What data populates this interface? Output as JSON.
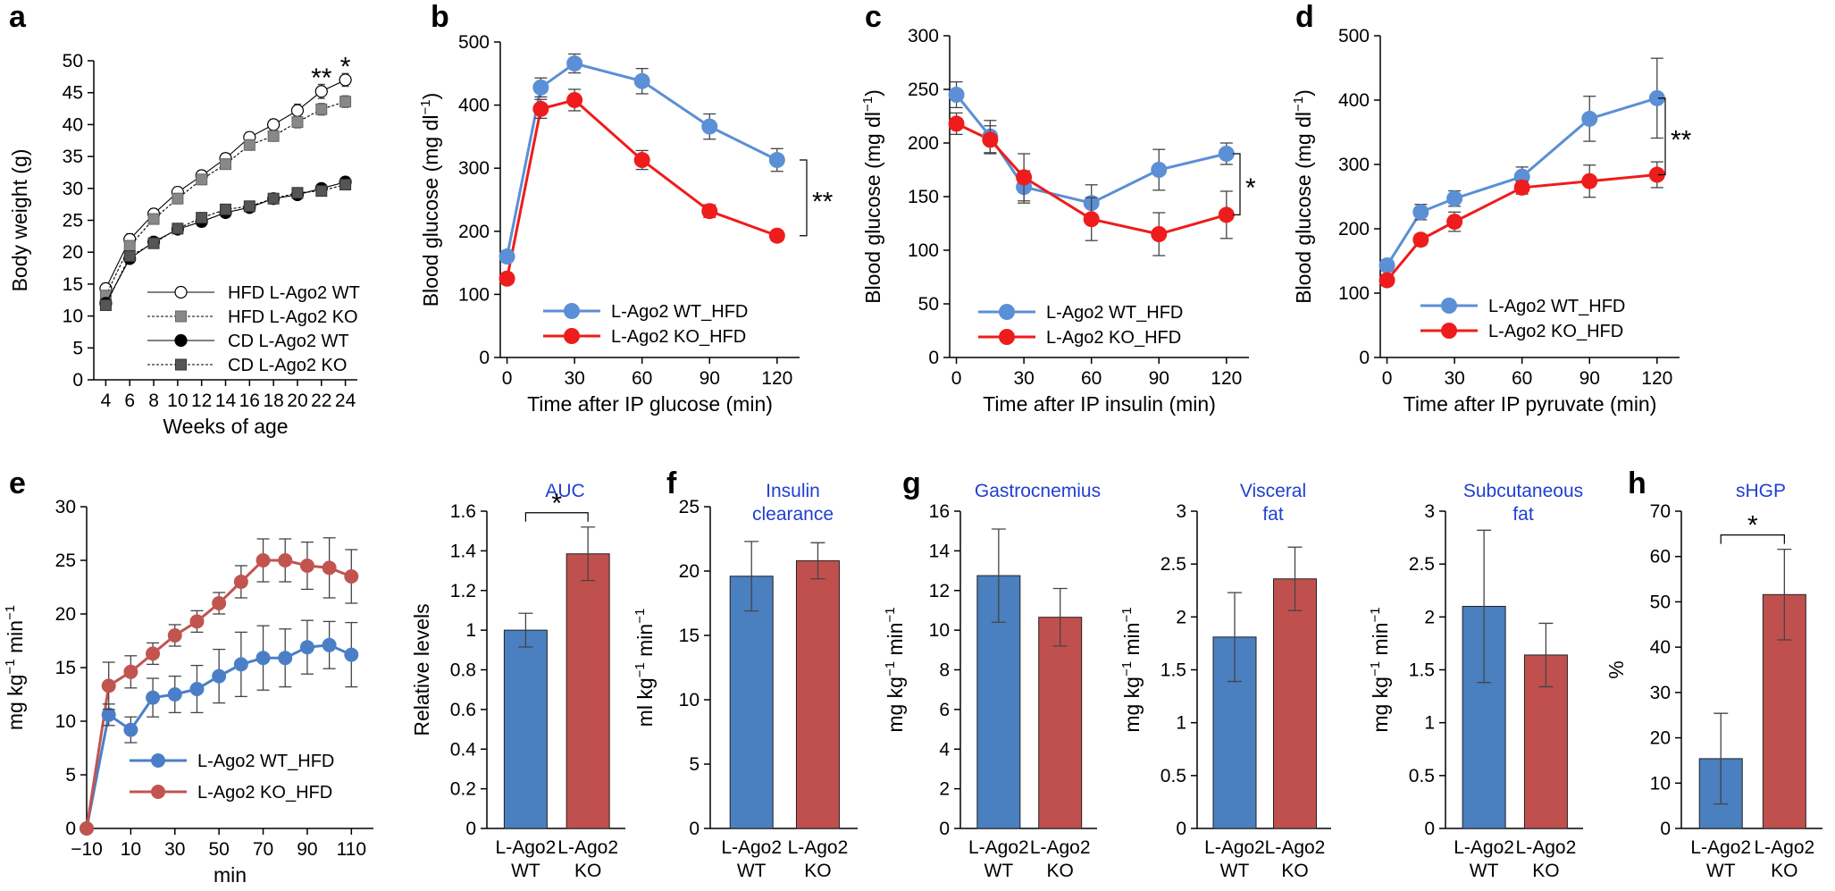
{
  "chart_data": [
    {
      "id": "a",
      "type": "line",
      "letter": "a",
      "xlabel": "Weeks of age",
      "ylabel": "Body weight (g)",
      "ylim": [
        0,
        50
      ],
      "yticks": [
        0,
        5,
        10,
        15,
        20,
        25,
        30,
        35,
        40,
        45,
        50
      ],
      "xlim": [
        3,
        25
      ],
      "xticks": [
        4,
        6,
        8,
        10,
        12,
        14,
        16,
        18,
        20,
        22,
        24
      ],
      "series": [
        {
          "name": "HFD L-Ago2 WT",
          "marker": "circle-open",
          "x": [
            4,
            6,
            8,
            10,
            12,
            14,
            16,
            18,
            20,
            22,
            24
          ],
          "y": [
            14.3,
            22.0,
            26.0,
            29.4,
            32.0,
            34.7,
            38.0,
            40.0,
            42.2,
            45.2,
            47.0
          ],
          "err": [
            0.8,
            0.9,
            0.8,
            0.8,
            0.8,
            0.8,
            0.8,
            0.8,
            1.0,
            1.1,
            1.0
          ]
        },
        {
          "name": "HFD L-Ago2 KO",
          "marker": "square-gray",
          "x": [
            4,
            6,
            8,
            10,
            12,
            14,
            16,
            18,
            20,
            22,
            24
          ],
          "y": [
            13.2,
            21.0,
            25.2,
            28.4,
            31.4,
            33.8,
            36.8,
            38.2,
            40.4,
            42.4,
            43.6
          ],
          "err": [
            0.8,
            0.8,
            0.8,
            0.8,
            0.8,
            0.8,
            0.8,
            0.8,
            0.9,
            0.9,
            0.9
          ]
        },
        {
          "name": "CD L-Ago2 WT",
          "marker": "circle-black",
          "x": [
            4,
            6,
            8,
            10,
            12,
            14,
            16,
            18,
            20,
            22,
            24
          ],
          "y": [
            12.0,
            19.0,
            21.6,
            23.6,
            24.8,
            26.2,
            27.0,
            28.4,
            29.0,
            30.0,
            31.0
          ],
          "err": [
            0.6,
            0.6,
            0.6,
            0.6,
            0.6,
            0.6,
            0.6,
            0.6,
            0.6,
            0.6,
            0.6
          ]
        },
        {
          "name": "CD L-Ago2 KO",
          "marker": "square-dark",
          "x": [
            4,
            6,
            8,
            10,
            12,
            14,
            16,
            18,
            20,
            22,
            24
          ],
          "y": [
            11.7,
            19.4,
            21.4,
            23.7,
            25.4,
            26.7,
            27.2,
            28.4,
            29.3,
            29.6,
            30.6
          ],
          "err": [
            0.6,
            0.6,
            0.6,
            0.6,
            0.6,
            0.6,
            0.6,
            0.6,
            0.6,
            0.6,
            0.6
          ]
        }
      ],
      "annotations": [
        {
          "text": "**",
          "x": 22,
          "y": 47.6
        },
        {
          "text": "*",
          "x": 24,
          "y": 49.4
        }
      ]
    },
    {
      "id": "b",
      "type": "line",
      "letter": "b",
      "xlabel": "Time after IP glucose (min)",
      "ylabel": "Blood glucose (mg dl",
      "ylabel_sup": "−1",
      "ylabel_end": ")",
      "ylim": [
        0,
        500
      ],
      "yticks": [
        0,
        100,
        200,
        300,
        400,
        500
      ],
      "xlim": [
        -3,
        130
      ],
      "xticks": [
        0,
        30,
        60,
        90,
        120
      ],
      "series": [
        {
          "name": "L-Ago2 WT_HFD",
          "color": "#5b8fd6",
          "x": [
            0,
            15,
            30,
            60,
            90,
            120
          ],
          "y": [
            160,
            428,
            466,
            438,
            366,
            313
          ],
          "err": [
            8,
            15,
            15,
            20,
            20,
            18
          ]
        },
        {
          "name": "L-Ago2 KO_HFD",
          "color": "#ee1c1c",
          "x": [
            0,
            15,
            30,
            60,
            90,
            120
          ],
          "y": [
            125,
            394,
            408,
            313,
            232,
            193
          ],
          "err": [
            8,
            15,
            17,
            15,
            10,
            8
          ]
        }
      ],
      "significance": "**"
    },
    {
      "id": "c",
      "type": "line",
      "letter": "c",
      "xlabel": "Time after IP insulin (min)",
      "ylabel": "Blood glucose (mg dl",
      "ylabel_sup": "−1",
      "ylabel_end": ")",
      "ylim": [
        0,
        300
      ],
      "yticks": [
        0,
        50,
        100,
        150,
        200,
        250,
        300
      ],
      "xlim": [
        -3,
        130
      ],
      "xticks": [
        0,
        30,
        60,
        90,
        120
      ],
      "series": [
        {
          "name": "L-Ago2 WT_HFD",
          "color": "#5b8fd6",
          "x": [
            0,
            15,
            30,
            60,
            90,
            120
          ],
          "y": [
            245,
            206,
            159,
            144,
            175,
            190
          ],
          "err": [
            12,
            15,
            15,
            17,
            19,
            10
          ]
        },
        {
          "name": "L-Ago2 KO_HFD",
          "color": "#ee1c1c",
          "x": [
            0,
            15,
            30,
            60,
            90,
            120
          ],
          "y": [
            218,
            203,
            168,
            129,
            115,
            133
          ],
          "err": [
            10,
            13,
            22,
            20,
            20,
            22
          ]
        }
      ],
      "significance": "*"
    },
    {
      "id": "d",
      "type": "line",
      "letter": "d",
      "xlabel": "Time after IP pyruvate (min)",
      "ylabel": "Blood glucose (mg dl",
      "ylabel_sup": "−1",
      "ylabel_end": ")",
      "ylim": [
        0,
        500
      ],
      "yticks": [
        0,
        100,
        200,
        300,
        400,
        500
      ],
      "xlim": [
        -3,
        130
      ],
      "xticks": [
        0,
        30,
        60,
        90,
        120
      ],
      "series": [
        {
          "name": "L-Ago2 WT_HFD",
          "color": "#5b8fd6",
          "x": [
            0,
            15,
            30,
            60,
            90,
            120
          ],
          "y": [
            143,
            226,
            247,
            281,
            371,
            403
          ],
          "err": [
            8,
            12,
            12,
            15,
            35,
            62
          ]
        },
        {
          "name": "L-Ago2 KO_HFD",
          "color": "#ee1c1c",
          "x": [
            0,
            15,
            30,
            60,
            90,
            120
          ],
          "y": [
            120,
            183,
            211,
            264,
            274,
            284
          ],
          "err": [
            8,
            8,
            15,
            10,
            25,
            20
          ]
        }
      ],
      "significance": "**"
    },
    {
      "id": "e",
      "type": "line",
      "letter": "e",
      "xlabel": "min",
      "ylabel": "mg kg",
      "ylabel_sup1": "−1",
      "ylabel_mid": " min",
      "ylabel_sup2": "−1",
      "ylim": [
        0,
        30
      ],
      "yticks": [
        0,
        5,
        10,
        15,
        20,
        25,
        30
      ],
      "xlim": [
        -10,
        120
      ],
      "xticks": [
        -10,
        10,
        30,
        50,
        70,
        90,
        110
      ],
      "xtick_labels": [
        "−10",
        "10",
        "30",
        "50",
        "70",
        "90",
        "110"
      ],
      "series": [
        {
          "name": "L-Ago2 WT_HFD",
          "color": "#4a7fc8",
          "x": [
            -10,
            0,
            10,
            20,
            30,
            40,
            50,
            60,
            70,
            80,
            90,
            100,
            110
          ],
          "y": [
            0,
            10.6,
            9.2,
            12.2,
            12.5,
            13.0,
            14.2,
            15.3,
            15.9,
            15.9,
            16.9,
            17.1,
            16.2
          ],
          "err": [
            0,
            1.0,
            1.2,
            1.8,
            1.7,
            2.2,
            2.5,
            3.0,
            3.0,
            2.7,
            2.5,
            2.2,
            3.0
          ]
        },
        {
          "name": "L-Ago2 KO_HFD",
          "color": "#c25450",
          "x": [
            -10,
            0,
            10,
            20,
            30,
            40,
            50,
            60,
            70,
            80,
            90,
            100,
            110
          ],
          "y": [
            0,
            13.3,
            14.6,
            16.3,
            18.0,
            19.3,
            21.0,
            23.0,
            25.0,
            25.0,
            24.5,
            24.3,
            23.5
          ],
          "err": [
            0,
            2.2,
            1.5,
            1.0,
            1.0,
            1.0,
            1.0,
            1.5,
            2.0,
            2.0,
            2.2,
            2.8,
            2.5
          ]
        }
      ]
    },
    {
      "id": "e2",
      "type": "bar",
      "letter": "",
      "title": "AUC",
      "ylabel": "Relative levels",
      "ylim": [
        0,
        1.6
      ],
      "yticks": [
        0,
        0.2,
        0.4,
        0.6,
        0.8,
        1,
        1.2,
        1.4,
        1.6
      ],
      "ytick_labels": [
        "0",
        "0.2",
        "0.4",
        "0.6",
        "0.8",
        "1",
        "1.2",
        "1.4",
        "1.6"
      ],
      "categories": [
        "L-Ago2 WT",
        "L-Ago2 KO"
      ],
      "values": [
        1.0,
        1.385
      ],
      "err": [
        0.085,
        0.135
      ],
      "significance": "*"
    },
    {
      "id": "f",
      "type": "bar",
      "letter": "f",
      "title": "Insulin clearance",
      "ylabel": "ml kg",
      "ylabel_sup1": "−1",
      "ylabel_mid": " min",
      "ylabel_sup2": "−1",
      "ylim": [
        0,
        25
      ],
      "yticks": [
        0,
        5,
        10,
        15,
        20,
        25
      ],
      "categories": [
        "L-Ago2 WT",
        "L-Ago2 KO"
      ],
      "values": [
        19.6,
        20.8
      ],
      "err": [
        2.7,
        1.4
      ]
    },
    {
      "id": "g1",
      "type": "bar",
      "letter": "g",
      "title": "Gastrocnemius",
      "ylabel": "mg kg",
      "ylabel_sup1": "−1",
      "ylabel_mid": " min",
      "ylabel_sup2": "−1",
      "ylim": [
        0,
        16
      ],
      "yticks": [
        0,
        2,
        4,
        6,
        8,
        10,
        12,
        14,
        16
      ],
      "categories": [
        "L-Ago2 WT",
        "L-Ago2 KO"
      ],
      "values": [
        12.75,
        10.65
      ],
      "err": [
        2.35,
        1.45
      ]
    },
    {
      "id": "g2",
      "type": "bar",
      "letter": "",
      "title": "Visceral fat",
      "ylabel": "mg kg",
      "ylabel_sup1": "−1",
      "ylabel_mid": " min",
      "ylabel_sup2": "−1",
      "ylim": [
        0,
        3
      ],
      "yticks": [
        0,
        0.5,
        1,
        1.5,
        2,
        2.5,
        3
      ],
      "ytick_labels": [
        "0",
        "0.5",
        "1",
        "1.5",
        "2",
        "2.5",
        "3"
      ],
      "categories": [
        "L-Ago2 WT",
        "L-Ago2 KO"
      ],
      "values": [
        1.81,
        2.36
      ],
      "err": [
        0.42,
        0.3
      ]
    },
    {
      "id": "g3",
      "type": "bar",
      "letter": "",
      "title": "Subcutaneous fat",
      "ylabel": "mg kg",
      "ylabel_sup1": "−1",
      "ylabel_mid": " min",
      "ylabel_sup2": "−1",
      "ylim": [
        0,
        3
      ],
      "yticks": [
        0,
        0.5,
        1,
        1.5,
        2,
        2.5,
        3
      ],
      "ytick_labels": [
        "0",
        "0.5",
        "1",
        "1.5",
        "2",
        "2.5",
        "3"
      ],
      "categories": [
        "L-Ago2 WT",
        "L-Ago2 KO"
      ],
      "values": [
        2.1,
        1.64
      ],
      "err": [
        0.72,
        0.3
      ]
    },
    {
      "id": "h",
      "type": "bar",
      "letter": "h",
      "title": "sHGP",
      "ylabel": "%",
      "ylim": [
        0,
        70
      ],
      "yticks": [
        0,
        10,
        20,
        30,
        40,
        50,
        60,
        70
      ],
      "categories": [
        "L-Ago2 WT",
        "L-Ago2 KO"
      ],
      "values": [
        15.4,
        51.6
      ],
      "err": [
        10.0,
        10.0
      ],
      "significance": "*"
    }
  ],
  "colors": {
    "bar_wt": "#4a7fc0",
    "bar_ko": "#c0504d"
  }
}
